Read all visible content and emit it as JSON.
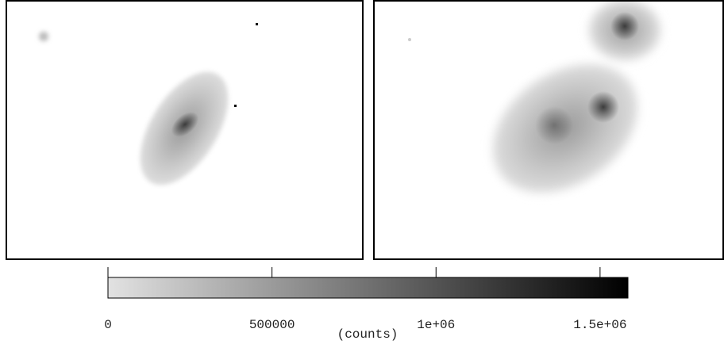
{
  "chart_data": {
    "type": "colorbar",
    "xlim": [
      0,
      1585000
    ],
    "xticks": [
      0,
      500000,
      {
        "value": 1000000,
        "label": "1e+06"
      },
      {
        "value": 1500000,
        "label": "1.5e+06"
      }
    ],
    "xlabel": "(counts)",
    "colormap": [
      "#e2e2e2",
      "#000000"
    ]
  }
}
